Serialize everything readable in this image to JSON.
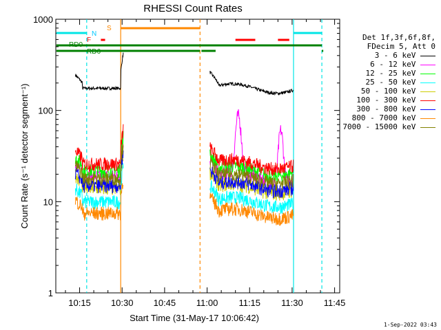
{
  "chart_data": {
    "type": "line",
    "title": "RHESSI Count Rates",
    "ylabel": "Count Rate (s⁻¹ detector segment⁻¹)",
    "xlabel": "Start Time (31-May-17 10:06:42)",
    "yscale": "log",
    "ylim": [
      1,
      1000
    ],
    "xlim_minutes": [
      10.11,
      11.78
    ],
    "y_ticks": [
      "1",
      "10",
      "100",
      "1000"
    ],
    "x_ticks": [
      "10:15",
      "10:30",
      "10:45",
      "11:00",
      "11:15",
      "11:30",
      "11:45"
    ],
    "legend_header": [
      "Det 1f,3f,6f,8f,",
      "FDecim 5, Att 0"
    ],
    "series": [
      {
        "name": "3 - 6 keV",
        "color": "#000000",
        "level": 175
      },
      {
        "name": "6 - 12 keV",
        "color": "#ff00ff",
        "level": 19
      },
      {
        "name": "12 - 25 keV",
        "color": "#00ff00",
        "level": 22
      },
      {
        "name": "25 - 50 keV",
        "color": "#00ffff",
        "level": 10
      },
      {
        "name": "50 - 100 keV",
        "color": "#cccc00",
        "level": 14
      },
      {
        "name": "100 - 300 keV",
        "color": "#ff0000",
        "level": 26
      },
      {
        "name": "300 - 800 keV",
        "color": "#0000ff",
        "level": 15
      },
      {
        "name": "800 - 7000 keV",
        "color": "#ff8800",
        "level": 7.5
      },
      {
        "name": "7000 - 15000 keV",
        "color": "#808000",
        "level": 18
      }
    ],
    "flags": [
      {
        "label": "RD0",
        "color": "#008000"
      },
      {
        "label": "RD6",
        "color": "#008000"
      },
      {
        "label": "N",
        "color": "#00c8ff"
      },
      {
        "label": "F",
        "color": "#ff0000"
      },
      {
        "label": "S",
        "color": "#ff8800"
      }
    ]
  },
  "footer": "1-Sep-2022 03:43"
}
